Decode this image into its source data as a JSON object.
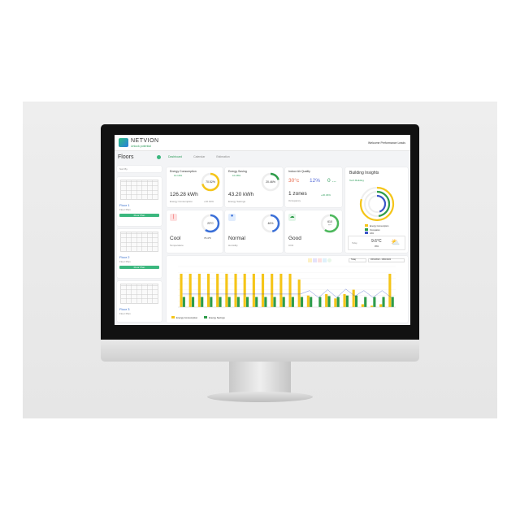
{
  "brand": {
    "name": "NETVION",
    "tagline": "Unlock potential"
  },
  "header": {
    "user": "Welcome Performance Leads"
  },
  "tabs": [
    {
      "label": "Dashboard"
    },
    {
      "label": "Calendar"
    },
    {
      "label": "Estimation"
    }
  ],
  "sidebar": {
    "title": "Floors",
    "sort_placeholder": "Sort By",
    "floors": [
      {
        "name": "Floor 1",
        "sub": "Floor Plan",
        "button": "Floor Plan"
      },
      {
        "name": "Floor 2",
        "sub": "Floor Plan",
        "button": "Floor Plan"
      },
      {
        "name": "Floor 3",
        "sub": "Floor Plan"
      }
    ]
  },
  "cards": {
    "consumption": {
      "title": "Energy Consumption",
      "delta": "10.19%",
      "pct": "70.52%",
      "value": "126.28 kWh",
      "label": "Energy Consumption",
      "change": "+10.19%",
      "fill": 0.7052
    },
    "saving": {
      "title": "Energy Saving",
      "delta": "10.28%",
      "pct": "20.46%",
      "value": "43.20 kWh",
      "label": "Energy Savings",
      "fill": 0.2046
    },
    "iaq": {
      "title": "Indoor Air Quality",
      "v1": "30°c",
      "v2": "12%",
      "v3": "0 ...",
      "value": "1 zones",
      "label": "Occupancy",
      "change": "+20.46%"
    },
    "temp": {
      "pct": "23°C",
      "value": "Cool",
      "sub": "73.4°F",
      "label": "Temperature",
      "fill": 0.6
    },
    "humidity": {
      "pct": "46%",
      "value": "Normal",
      "label": "Humidity",
      "fill": 0.46
    },
    "co2": {
      "pct": "610",
      "unit": "ppm",
      "value": "Good",
      "label": "CO2",
      "fill": 0.6
    }
  },
  "insights": {
    "title": "Building Insights",
    "building": "Tech Building",
    "legend": [
      "Energy Consumption",
      "Occupation",
      "44%"
    ],
    "weather_label": "Today",
    "weather_temp": "9.6°C",
    "weather_hum": "45%"
  },
  "chart_controls": {
    "period": "Today",
    "range": "18/01/2022 - 18/01/2022"
  },
  "chart_data": {
    "type": "bar",
    "ylim": [
      0,
      140
    ],
    "series": [
      {
        "name": "Energy Consumption",
        "color": "#f5c518",
        "values": [
          115,
          115,
          115,
          115,
          115,
          115,
          115,
          115,
          115,
          115,
          115,
          115,
          115,
          95,
          40,
          0,
          45,
          30,
          45,
          60,
          10,
          5,
          10,
          115
        ]
      },
      {
        "name": "Energy Savings",
        "color": "#2e9c4a",
        "values": [
          35,
          35,
          35,
          35,
          35,
          35,
          35,
          35,
          35,
          35,
          35,
          35,
          35,
          35,
          35,
          35,
          38,
          35,
          40,
          40,
          35,
          35,
          35,
          35
        ]
      }
    ]
  },
  "colors": {
    "yellow": "#f5c518",
    "green": "#2e9c4a",
    "blue": "#3a6fd8"
  }
}
